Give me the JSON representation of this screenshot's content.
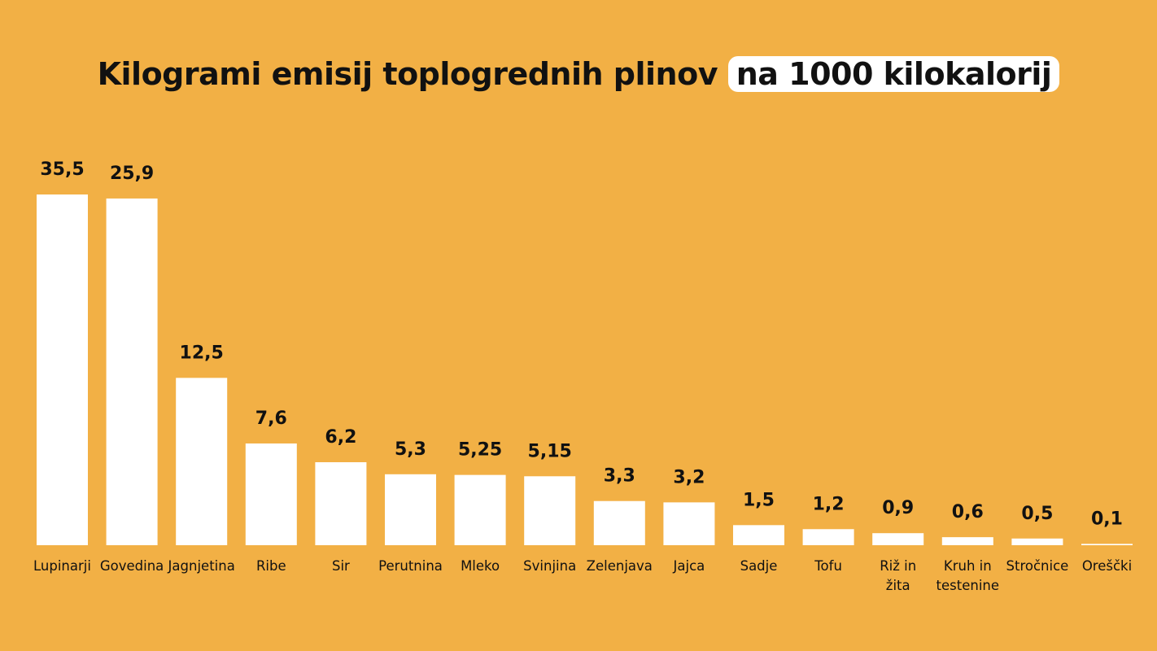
{
  "chart_data": {
    "type": "bar",
    "title": "Kilogrami emisij toplogrednih plinov",
    "title_highlight": "na 1000 kilokalorij",
    "xlabel": "",
    "ylabel": "",
    "ylim": [
      0,
      26.2
    ],
    "grid": false,
    "categories": [
      "Lupinarji",
      "Govedina",
      "Jagnjetina",
      "Ribe",
      "Sir",
      "Perutnina",
      "Mleko",
      "Svinjina",
      "Zelenjava",
      "Jajca",
      "Sadje",
      "Tofu",
      "Riž in žita",
      "Kruh in testenine",
      "Stročnice",
      "Oreščki"
    ],
    "category_lines": [
      [
        "Lupinarji"
      ],
      [
        "Govedina"
      ],
      [
        "Jagnjetina"
      ],
      [
        "Ribe"
      ],
      [
        "Sir"
      ],
      [
        "Perutnina"
      ],
      [
        "Mleko"
      ],
      [
        "Svinjina"
      ],
      [
        "Zelenjava"
      ],
      [
        "Jajca"
      ],
      [
        "Sadje"
      ],
      [
        "Tofu"
      ],
      [
        "Riž in",
        "žita"
      ],
      [
        "Kruh in",
        "testenine"
      ],
      [
        "Stročnice"
      ],
      [
        "Oreščki"
      ]
    ],
    "values": [
      35.5,
      25.9,
      12.5,
      7.6,
      6.2,
      5.3,
      5.25,
      5.15,
      3.3,
      3.2,
      1.5,
      1.2,
      0.9,
      0.6,
      0.5,
      0.1
    ],
    "value_labels": [
      "35,5",
      "25,9",
      "12,5",
      "7,6",
      "6,2",
      "5,3",
      "5,25",
      "5,15",
      "3,3",
      "3,2",
      "1,5",
      "1,2",
      "0,9",
      "0,6",
      "0,5",
      "0,1"
    ],
    "colors": {
      "background": "#F2B045",
      "bar": "#FFFFFF",
      "text": "#111111"
    }
  }
}
